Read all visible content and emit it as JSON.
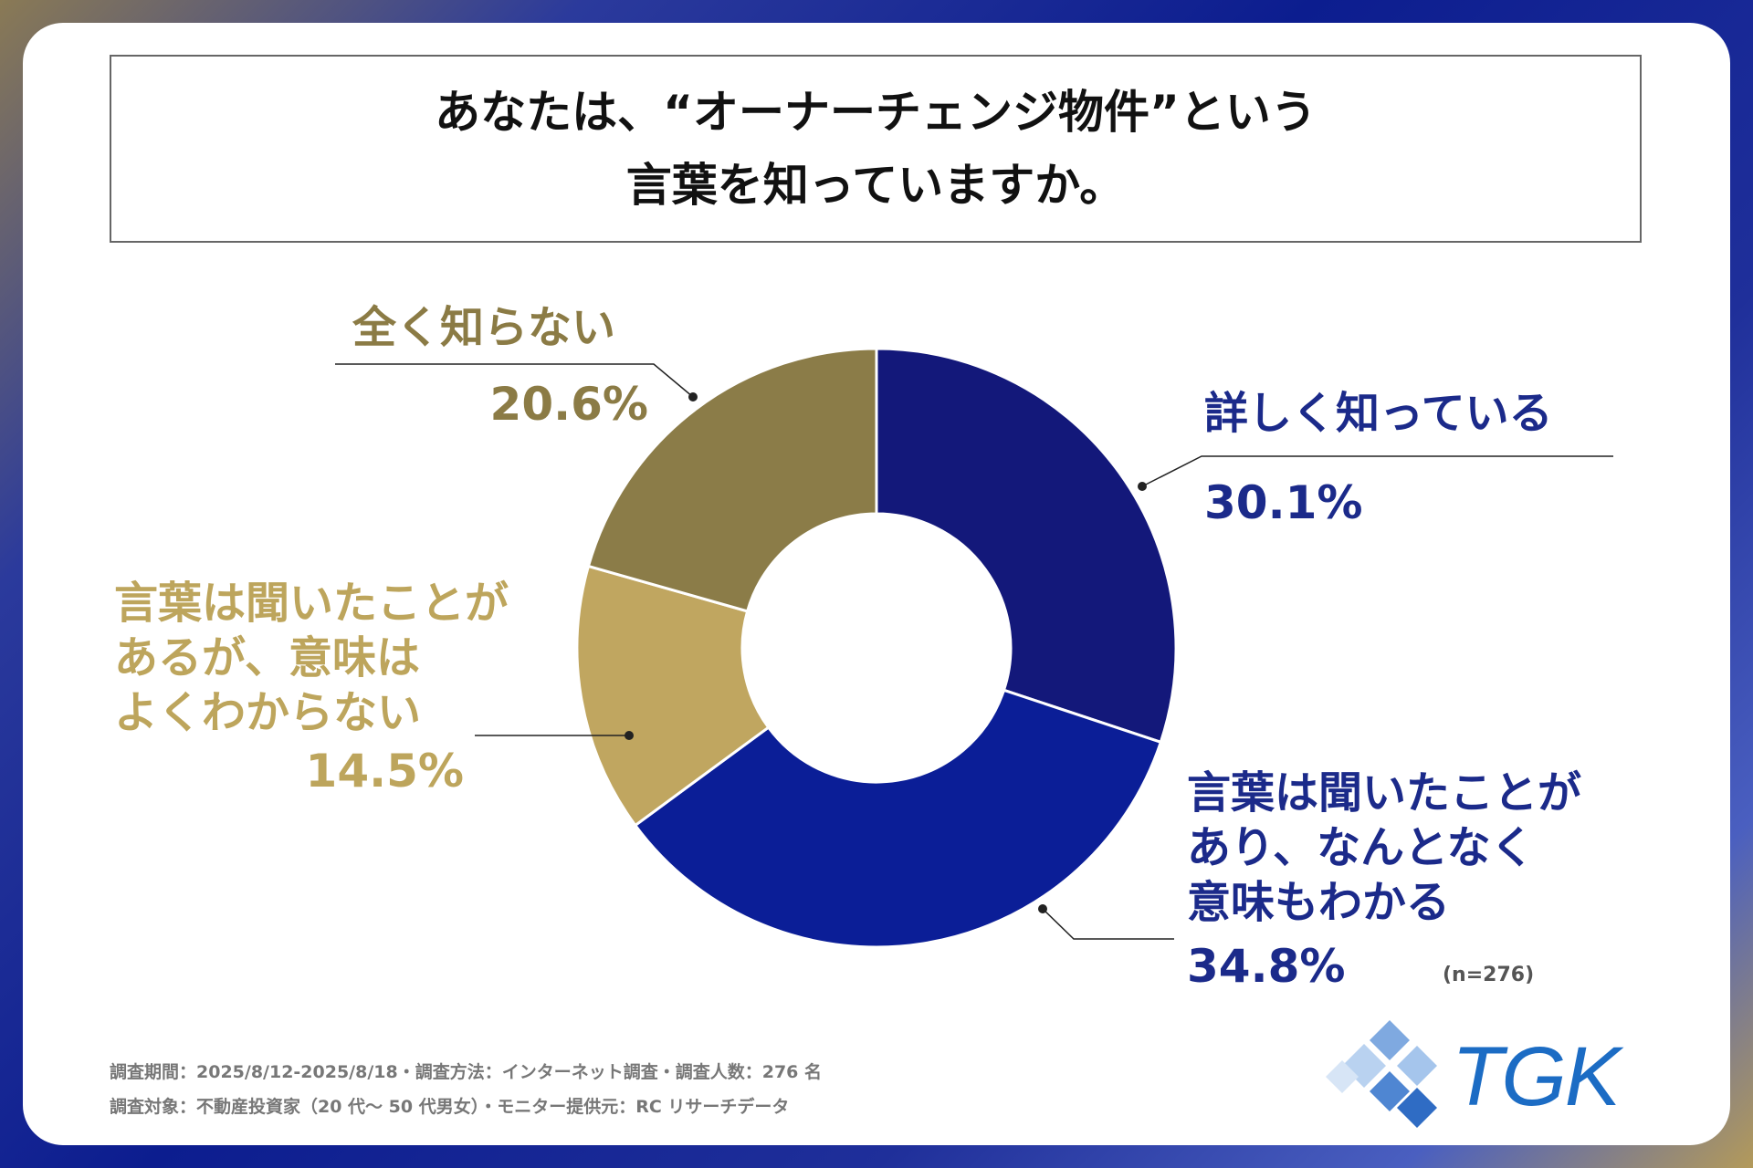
{
  "chart_data": {
    "type": "donut",
    "title": "あなたは、“オーナーチェンジ物件”という\n言葉を知っていますか。",
    "categories": [
      "詳しく知っている",
      "言葉は聞いたことが\nあり、なんとなく\n意味もわかる",
      "言葉は聞いたことが\nあるが、意味は\nよくわからない",
      "全く知らない"
    ],
    "values": [
      30.1,
      34.8,
      14.5,
      20.6
    ],
    "value_labels": [
      "30.1%",
      "34.8%",
      "14.5%",
      "20.6%"
    ],
    "colors": [
      "#13187a",
      "#0b1e97",
      "#c0a660",
      "#8b7c48"
    ],
    "label_colors": [
      "#1b2a8a",
      "#1b2a8a",
      "#bda55c",
      "#8b7b45"
    ],
    "annotation": "(n=276)"
  },
  "footer": {
    "lines": [
      "調査期間：2025/8/12-2025/8/18・調査方法：インターネット調査・調査人数：276 名",
      "調査対象：不動産投資家（20 代～ 50 代男女）・モニター提供元：RC リサーチデータ"
    ]
  },
  "logo": "TGK"
}
